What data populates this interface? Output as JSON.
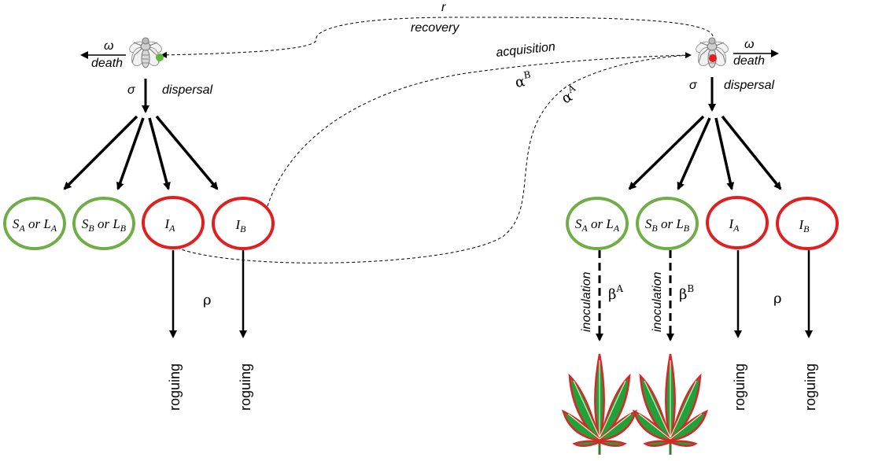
{
  "flows": {
    "recovery_symbol": "r",
    "recovery_label": "recovery",
    "acquisition_label": "acquisition",
    "alpha_symbol": "α",
    "alpha_b_sup": "B",
    "alpha_a_sup": "A"
  },
  "left": {
    "death_symbol": "ω",
    "death_label": "death",
    "dispersal_symbol": "σ",
    "dispersal_label": "dispersal",
    "nodes": [
      {
        "main": "S",
        "sub": "A",
        "or": " or ",
        "main2": "L",
        "sub2": "A",
        "color": "#70ad47"
      },
      {
        "main": "S",
        "sub": "B",
        "or": " or ",
        "main2": "L",
        "sub2": "B",
        "color": "#70ad47"
      },
      {
        "main": "I",
        "sub": "A",
        "color": "#e02020"
      },
      {
        "main": "I",
        "sub": "B",
        "color": "#e02020"
      }
    ],
    "rho_symbol": "ρ",
    "roguing_labels": [
      "roguing",
      "roguing"
    ]
  },
  "right": {
    "death_symbol": "ω",
    "death_label": "death",
    "dispersal_symbol": "σ",
    "dispersal_label": "dispersal",
    "nodes": [
      {
        "main": "S",
        "sub": "A",
        "or": " or ",
        "main2": "L",
        "sub2": "A",
        "color": "#70ad47"
      },
      {
        "main": "S",
        "sub": "B",
        "or": " or ",
        "main2": "L",
        "sub2": "B",
        "color": "#70ad47"
      },
      {
        "main": "I",
        "sub": "A",
        "color": "#e02020"
      },
      {
        "main": "I",
        "sub": "B",
        "color": "#e02020"
      }
    ],
    "inoculation_labels": [
      "inoculation",
      "inoculation"
    ],
    "beta_symbol": "β",
    "beta_sups": [
      "A",
      "B"
    ],
    "rho_symbol": "ρ",
    "roguing_labels": [
      "roguing",
      "roguing"
    ]
  },
  "icons": {
    "left_vector": "fly-icon-green-dot",
    "right_vector": "fly-icon-red-dot",
    "plant": "cannabis-leaf-icon"
  },
  "colors": {
    "susceptible": "#70ad47",
    "infected": "#e02020",
    "leaf_fill": "#1f9a2e",
    "leaf_edge": "#d02020"
  }
}
